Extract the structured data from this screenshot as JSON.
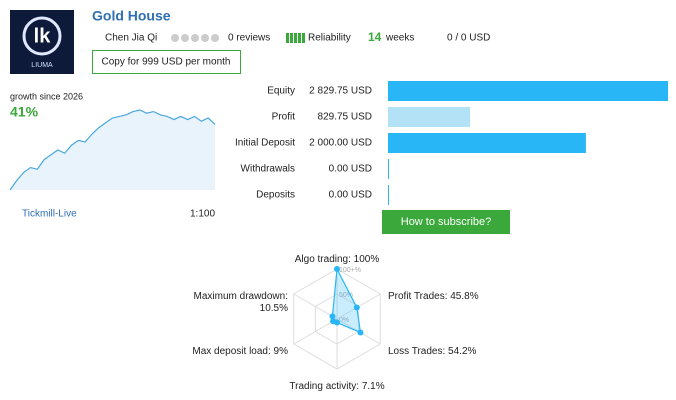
{
  "signal": {
    "title": "Gold House",
    "logo_text": "LIUMA",
    "author": "Chen Jia Qi",
    "reviews": "0 reviews",
    "reliability": "Reliability",
    "weeks": 14,
    "weeks_label": "weeks",
    "subscribers": "0 / 0 USD",
    "copy_button": "Copy for 999 USD per month"
  },
  "growth": {
    "label": "growth since 2026",
    "value": 41,
    "value_label": "41%",
    "values": [
      0,
      6,
      11,
      14,
      13,
      19,
      22,
      25,
      23,
      28,
      31,
      30,
      35,
      39,
      42,
      45,
      46,
      47,
      49,
      50,
      48,
      49,
      47,
      46,
      44,
      46,
      44,
      46,
      43,
      45,
      41
    ],
    "broker": "Tickmill-Live",
    "leverage": "1:100"
  },
  "balance": {
    "categories": [
      "Equity",
      "Profit",
      "Initial Deposit",
      "Withdrawals",
      "Deposits"
    ],
    "values": [
      2829.75,
      829.75,
      2000,
      0,
      0
    ],
    "value_labels": [
      "2 829.75 USD",
      "829.75 USD",
      "2 000.00 USD",
      "0.00 USD",
      "0.00 USD"
    ],
    "colors": [
      "#29b6f6",
      "#b3e2f7",
      "#29b6f6",
      "#29b6f6",
      "#29b6f6"
    ]
  },
  "subscribe_button": "How to subscribe?",
  "radar": {
    "axes": [
      "Algo trading:",
      "Profit Trades:",
      "Loss Trades:",
      "Trading activity:",
      "Max deposit load:",
      "Maximum drawdown:"
    ],
    "values": [
      100,
      45.8,
      54.2,
      7.1,
      9,
      10.5
    ],
    "value_labels": [
      "100%",
      "45.8%",
      "54.2%",
      "7.1%",
      "9%",
      "10.5%"
    ],
    "rlim": [
      0,
      100
    ],
    "rticks": [
      {
        "value": 100,
        "label": "100+%"
      },
      {
        "value": 50,
        "label": "50%"
      },
      {
        "value": 0,
        "label": "0%"
      }
    ]
  }
}
